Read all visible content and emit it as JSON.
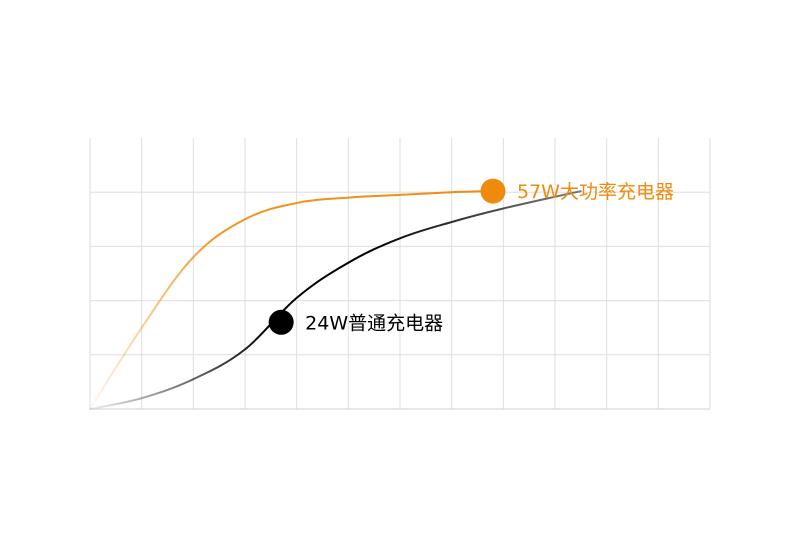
{
  "chart_data": {
    "type": "line",
    "grid": true,
    "legend": "none",
    "xlim": [
      0,
      12
    ],
    "ylim": [
      0,
      5
    ],
    "series": [
      {
        "name": "57W大功率充电器",
        "color": "#f08a0c",
        "x": [
          0,
          1,
          2,
          3,
          4,
          5,
          6,
          7,
          7.8
        ],
        "y": [
          0,
          1.5,
          2.8,
          3.5,
          3.8,
          3.9,
          3.95,
          4.0,
          4.02
        ],
        "marker_x": 7.8,
        "marker_y": 4.02
      },
      {
        "name": "24W普通充电器",
        "color": "#000000",
        "x": [
          0,
          1,
          2,
          3,
          4,
          5,
          6,
          7,
          8,
          9.5
        ],
        "y": [
          0,
          0.2,
          0.55,
          1.1,
          2.05,
          2.7,
          3.15,
          3.45,
          3.7,
          4.02
        ],
        "marker_x": 3.7,
        "marker_y": 1.6
      }
    ]
  }
}
